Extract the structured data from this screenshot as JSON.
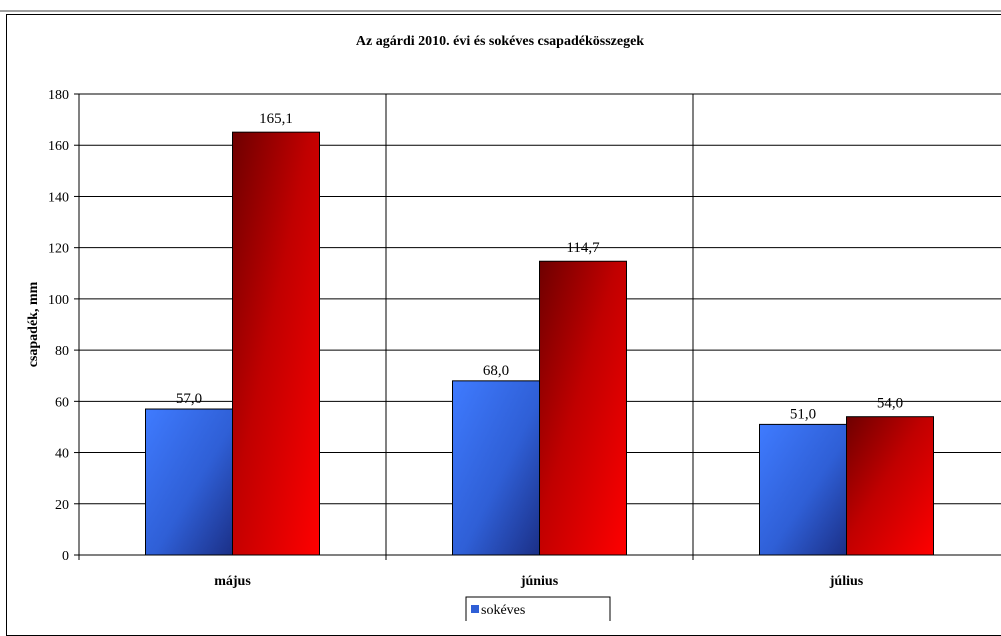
{
  "colors": {
    "series_1": "#2f5fd6",
    "series_2": "#cc0000"
  },
  "chart_data": {
    "type": "bar",
    "title": "Az agárdi 2010. évi és sokéves csapadékösszegek",
    "xlabel": "",
    "ylabel": "csapadék, mm",
    "ylim": [
      0,
      180
    ],
    "yticks": [
      0,
      20,
      40,
      60,
      80,
      100,
      120,
      140,
      160,
      180
    ],
    "grid": true,
    "legend_placement": "bottom",
    "categories": [
      "május",
      "június",
      "július"
    ],
    "series": [
      {
        "name": "sokéves",
        "values": [
          57.0,
          68.0,
          51.0
        ],
        "labels": [
          "57,0",
          "68,0",
          "51,0"
        ]
      },
      {
        "values": [
          165.1,
          114.7,
          54.0
        ],
        "labels": [
          "165,1",
          "114,7",
          "54,0"
        ]
      }
    ]
  }
}
